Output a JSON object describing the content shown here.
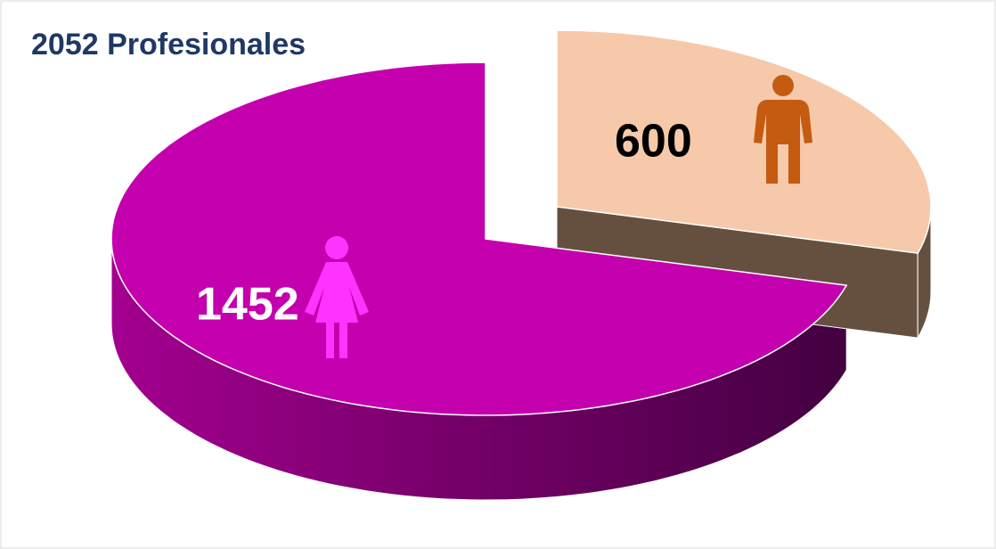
{
  "chart_data": {
    "type": "pie3d",
    "title": "2052 Profesionales",
    "values": [
      1452,
      600
    ],
    "colors": [
      "#c400ae",
      "#f5c9aa"
    ],
    "side_colors": [
      "#8a0078",
      "#65503f"
    ]
  }
}
